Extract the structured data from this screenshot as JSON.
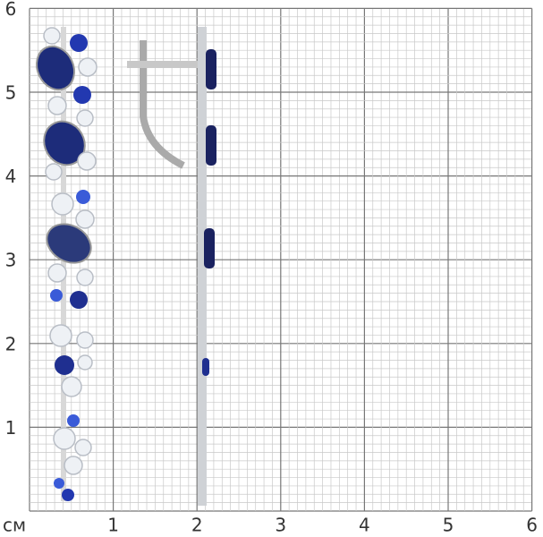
{
  "axis_unit": "см",
  "y_labels": [
    "1",
    "2",
    "3",
    "4",
    "5",
    "6"
  ],
  "x_labels": [
    "1",
    "2",
    "3",
    "4",
    "5",
    "6"
  ]
}
